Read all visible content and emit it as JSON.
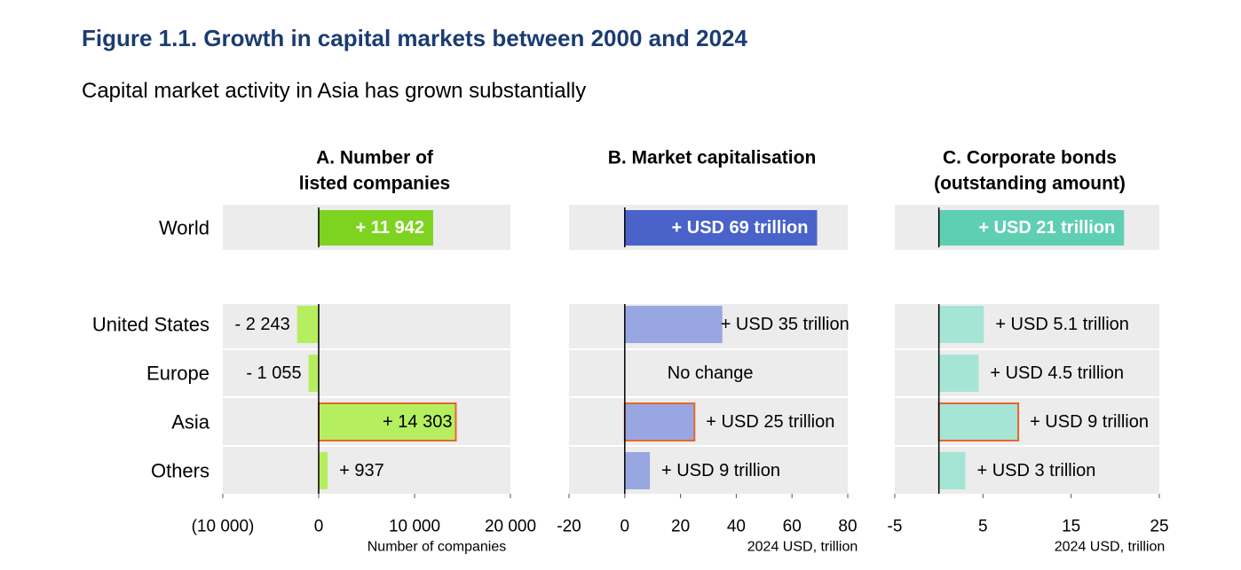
{
  "figure": {
    "title": "Figure 1.1. Growth in capital markets between 2000 and 2024",
    "subtitle": "Capital market activity in Asia has grown substantially"
  },
  "colors": {
    "band": "#ececec",
    "axis": "#000000",
    "highlight_border": "#e8662a",
    "title": "#1b3c73"
  },
  "chart_data": [
    {
      "type": "bar",
      "orientation": "horizontal",
      "panel": "A",
      "title_lines": [
        "A. Number of",
        "listed companies"
      ],
      "xlabel": "Number of companies",
      "xlim": [
        -10000,
        20000
      ],
      "ticks": [
        -10000,
        0,
        10000,
        20000
      ],
      "tick_labels": [
        "(10 000)",
        "0",
        "10 000",
        "20 000"
      ],
      "world": {
        "category": "World",
        "value": 11942,
        "label": "+ 11 942",
        "color": "#7ed321"
      },
      "regions_color": "#b5ef60",
      "regions": [
        {
          "category": "United States",
          "value": -2243,
          "label": "- 2 243",
          "highlight": false
        },
        {
          "category": "Europe",
          "value": -1055,
          "label": "- 1 055",
          "highlight": false
        },
        {
          "category": "Asia",
          "value": 14303,
          "label": "+ 14 303",
          "highlight": true
        },
        {
          "category": "Others",
          "value": 937,
          "label": "+ 937",
          "highlight": false
        }
      ]
    },
    {
      "type": "bar",
      "orientation": "horizontal",
      "panel": "B",
      "title_lines": [
        "B. Market capitalisation"
      ],
      "xlabel": "2024 USD, trillion",
      "xlim": [
        -20,
        80
      ],
      "ticks": [
        -20,
        0,
        20,
        40,
        60,
        80
      ],
      "tick_labels": [
        "-20",
        "0",
        "20",
        "40",
        "60",
        "80"
      ],
      "world": {
        "category": "World",
        "value": 69,
        "label": "+ USD 69 trillion",
        "color": "#4a63cb"
      },
      "regions_color": "#98a6e1",
      "regions": [
        {
          "category": "United States",
          "value": 35,
          "label": "+ USD 35 trillion",
          "highlight": false
        },
        {
          "category": "Europe",
          "value": 0,
          "label": "No change",
          "highlight": false
        },
        {
          "category": "Asia",
          "value": 25,
          "label": "+ USD 25 trillion",
          "highlight": true
        },
        {
          "category": "Others",
          "value": 9,
          "label": "+ USD 9 trillion",
          "highlight": false
        }
      ]
    },
    {
      "type": "bar",
      "orientation": "horizontal",
      "panel": "C",
      "title_lines": [
        "C. Corporate bonds",
        "(outstanding amount)"
      ],
      "xlabel": "2024 USD, trillion",
      "xlim": [
        -5,
        25
      ],
      "ticks": [
        -5,
        5,
        15,
        25
      ],
      "tick_labels": [
        "-5",
        "5",
        "15",
        "25"
      ],
      "world": {
        "category": "World",
        "value": 21,
        "label": "+ USD 21 trillion",
        "color": "#5fcfb4"
      },
      "regions_color": "#a4e5d6",
      "regions": [
        {
          "category": "United States",
          "value": 5.1,
          "label": "+ USD 5.1 trillion",
          "highlight": false
        },
        {
          "category": "Europe",
          "value": 4.5,
          "label": "+ USD 4.5 trillion",
          "highlight": false
        },
        {
          "category": "Asia",
          "value": 9,
          "label": "+ USD 9 trillion",
          "highlight": true
        },
        {
          "category": "Others",
          "value": 3,
          "label": "+ USD 3 trillion",
          "highlight": false
        }
      ]
    }
  ]
}
